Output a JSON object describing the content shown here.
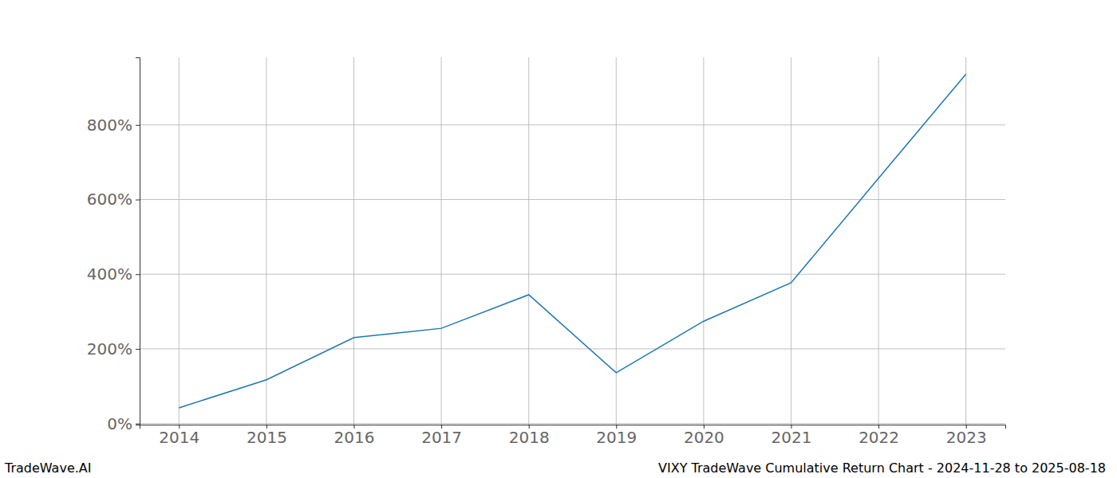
{
  "chart_data": {
    "type": "line",
    "title": "VIXY TradeWave Cumulative Return Chart - 2024-11-28 to 2025-08-18",
    "source": "TradeWave.AI",
    "x": [
      2014,
      2015,
      2016,
      2017,
      2018,
      2019,
      2020,
      2021,
      2022,
      2023
    ],
    "values": [
      42,
      117,
      230,
      255,
      345,
      136,
      274,
      377,
      657,
      936
    ],
    "color": "#1f77b4",
    "xlim": [
      2013.55,
      2023.45
    ],
    "xticks": [
      2014,
      2015,
      2016,
      2017,
      2018,
      2019,
      2020,
      2021,
      2022,
      2023
    ],
    "ylim": [
      -3,
      981
    ],
    "yticks": [
      {
        "value": 0,
        "label": "0%"
      },
      {
        "value": 200,
        "label": "200%"
      },
      {
        "value": 400,
        "label": "400%"
      },
      {
        "value": 600,
        "label": "600%"
      },
      {
        "value": 800,
        "label": "800%"
      }
    ],
    "grid": true
  }
}
